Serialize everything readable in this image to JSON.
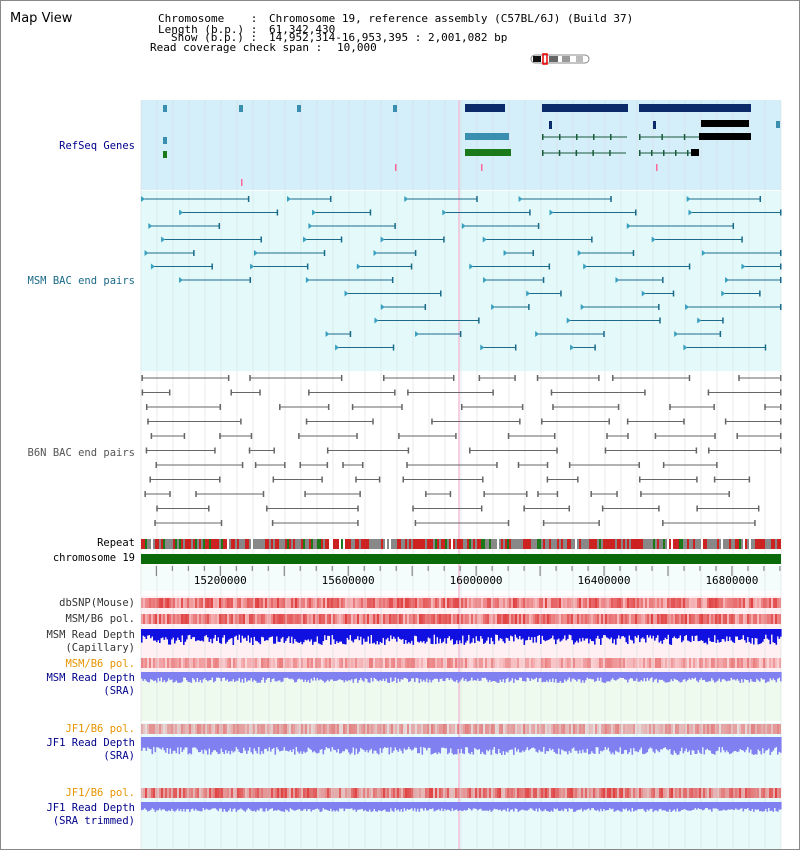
{
  "page": {
    "title": "Map View"
  },
  "header": {
    "chromosome_label": "Chromosome    :",
    "chromosome_value": "Chromosome 19, reference assembly (C57BL/6J) (Build 37)",
    "length_label": "Length (b.p.) :",
    "length_value": "61,342,430",
    "show_label": "Show (b.p.) :",
    "show_value": "14,952,314-16,953,395 : 2,001,082 bp",
    "coverage_label": "Read coverage check span :",
    "coverage_value": "10,000"
  },
  "tracks": {
    "refseq": "RefSeq Genes",
    "msm_bac": "MSM BAC end pairs",
    "b6n_bac": "B6N BAC end pairs",
    "repeat": "Repeat",
    "chromosome": "chromosome 19",
    "dbsnp": "dbSNP(Mouse)",
    "msm_b6_pol_1": "MSM/B6 pol.",
    "msm_depth_cap_1": "MSM Read Depth",
    "msm_depth_cap_2": "(Capillary)",
    "msm_b6_pol_2": "MSM/B6 pol.",
    "msm_depth_sra_1": "MSM Read Depth",
    "msm_depth_sra_2": "(SRA)",
    "jf1_b6_pol_1": "JF1/B6 pol.",
    "jf1_depth_sra_1": "JF1 Read Depth",
    "jf1_depth_sra_2": "(SRA)",
    "jf1_b6_pol_2": "JF1/B6 pol.",
    "jf1_depth_trim_1": "JF1 Read Depth",
    "jf1_depth_trim_2": "(SRA trimmed)"
  },
  "axis": {
    "ticks": [
      "15200000",
      "15600000",
      "16000000",
      "16400000",
      "16800000"
    ],
    "tick_values": [
      15200000,
      15600000,
      16000000,
      16400000,
      16800000
    ],
    "range_start": 14952314,
    "range_end": 16953395
  },
  "colors": {
    "refseq_bg": "#d4eefa",
    "msm_bg": "#e4fafa",
    "gene_dark": "#0a2a6a",
    "gene_teal": "#3a8fb0",
    "gene_green": "#1a7a1a",
    "msm_feature": "#1a6a8a",
    "b6n_feature": "#666666",
    "chromosome_bar": "#0a6a0a",
    "depth_blue": "#1010e0",
    "depth_light": "#8080f0",
    "pol_red": "#e04040",
    "label_navy": "#00008b",
    "label_orange": "#e69500"
  }
}
